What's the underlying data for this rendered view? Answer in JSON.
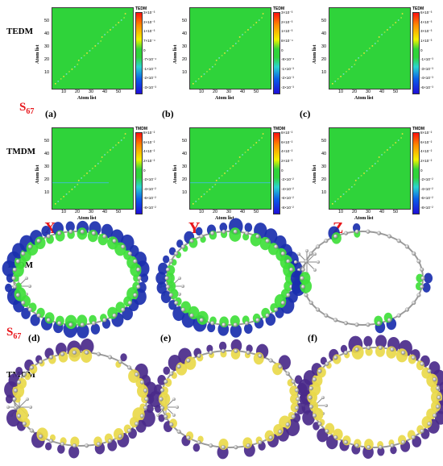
{
  "rows": {
    "top_label": "TEDM",
    "middle_label": "TMDM",
    "orbital_top_label": "TEDM",
    "orbital_bottom_label": "TMDM"
  },
  "state": {
    "text": "S",
    "sub": "67"
  },
  "directions": [
    "X",
    "Y",
    "Z"
  ],
  "panel_labels": {
    "a": "(a)",
    "b": "(b)",
    "c": "(c)",
    "d": "(d)",
    "e": "(e)",
    "f": "(f)"
  },
  "axes": {
    "xlabel": "Atom list",
    "ylabel": "Atom list",
    "x_ticks": [
      "10",
      "20",
      "30",
      "40",
      "50"
    ],
    "y_ticks": [
      "50",
      "40",
      "30",
      "20",
      "10"
    ]
  },
  "colorbars": {
    "tedm_a": {
      "title": "TEDM",
      "ticks": [
        "3×10⁻³",
        "2×10⁻³",
        "1×10⁻³",
        "7×10⁻⁴",
        "0",
        "-7×10⁻⁴",
        "-1×10⁻³",
        "-2×10⁻³",
        "-3×10⁻³"
      ]
    },
    "tedm_b": {
      "title": "TEDM",
      "ticks": [
        "3×10⁻³",
        "2×10⁻³",
        "1×10⁻³",
        "8×10⁻⁴",
        "0",
        "-8×10⁻⁴",
        "-1×10⁻³",
        "-2×10⁻³",
        "-3×10⁻³"
      ]
    },
    "tedm_c": {
      "title": "TEDM",
      "ticks": [
        "6×10⁻³",
        "4×10⁻³",
        "3×10⁻³",
        "1×10⁻³",
        "0",
        "-1×10⁻³",
        "-3×10⁻³",
        "-4×10⁻³",
        "-6×10⁻³"
      ]
    },
    "tmdm_a": {
      "title": "TMDM",
      "ticks": [
        "8×10⁻²",
        "6×10⁻²",
        "4×10⁻²",
        "2×10⁻²",
        "0",
        "-2×10⁻²",
        "-4×10⁻²",
        "-6×10⁻²",
        "-8×10⁻²"
      ]
    },
    "tmdm_b": {
      "title": "TMDM",
      "ticks": [
        "8×10⁻²",
        "6×10⁻²",
        "4×10⁻²",
        "2×10⁻²",
        "0",
        "-2×10⁻²",
        "-4×10⁻²",
        "-6×10⁻²",
        "-8×10⁻²"
      ]
    },
    "tmdm_c": {
      "title": "TMDM",
      "ticks": [
        "8×10⁻²",
        "6×10⁻²",
        "4×10⁻²",
        "2×10⁻²",
        "0",
        "-2×10⁻²",
        "-4×10⁻²",
        "-6×10⁻²",
        "-8×10⁻²"
      ]
    }
  },
  "colors": {
    "map_background": "#2fd33a",
    "diagonal": "#f6f23a",
    "tedm_orbital_pos": "#1a2fae",
    "tedm_orbital_neg": "#3fe03a",
    "tmdm_orbital_pos": "#4a2a8a",
    "tmdm_orbital_neg": "#e9d94a",
    "label_red": "#e8161b"
  }
}
